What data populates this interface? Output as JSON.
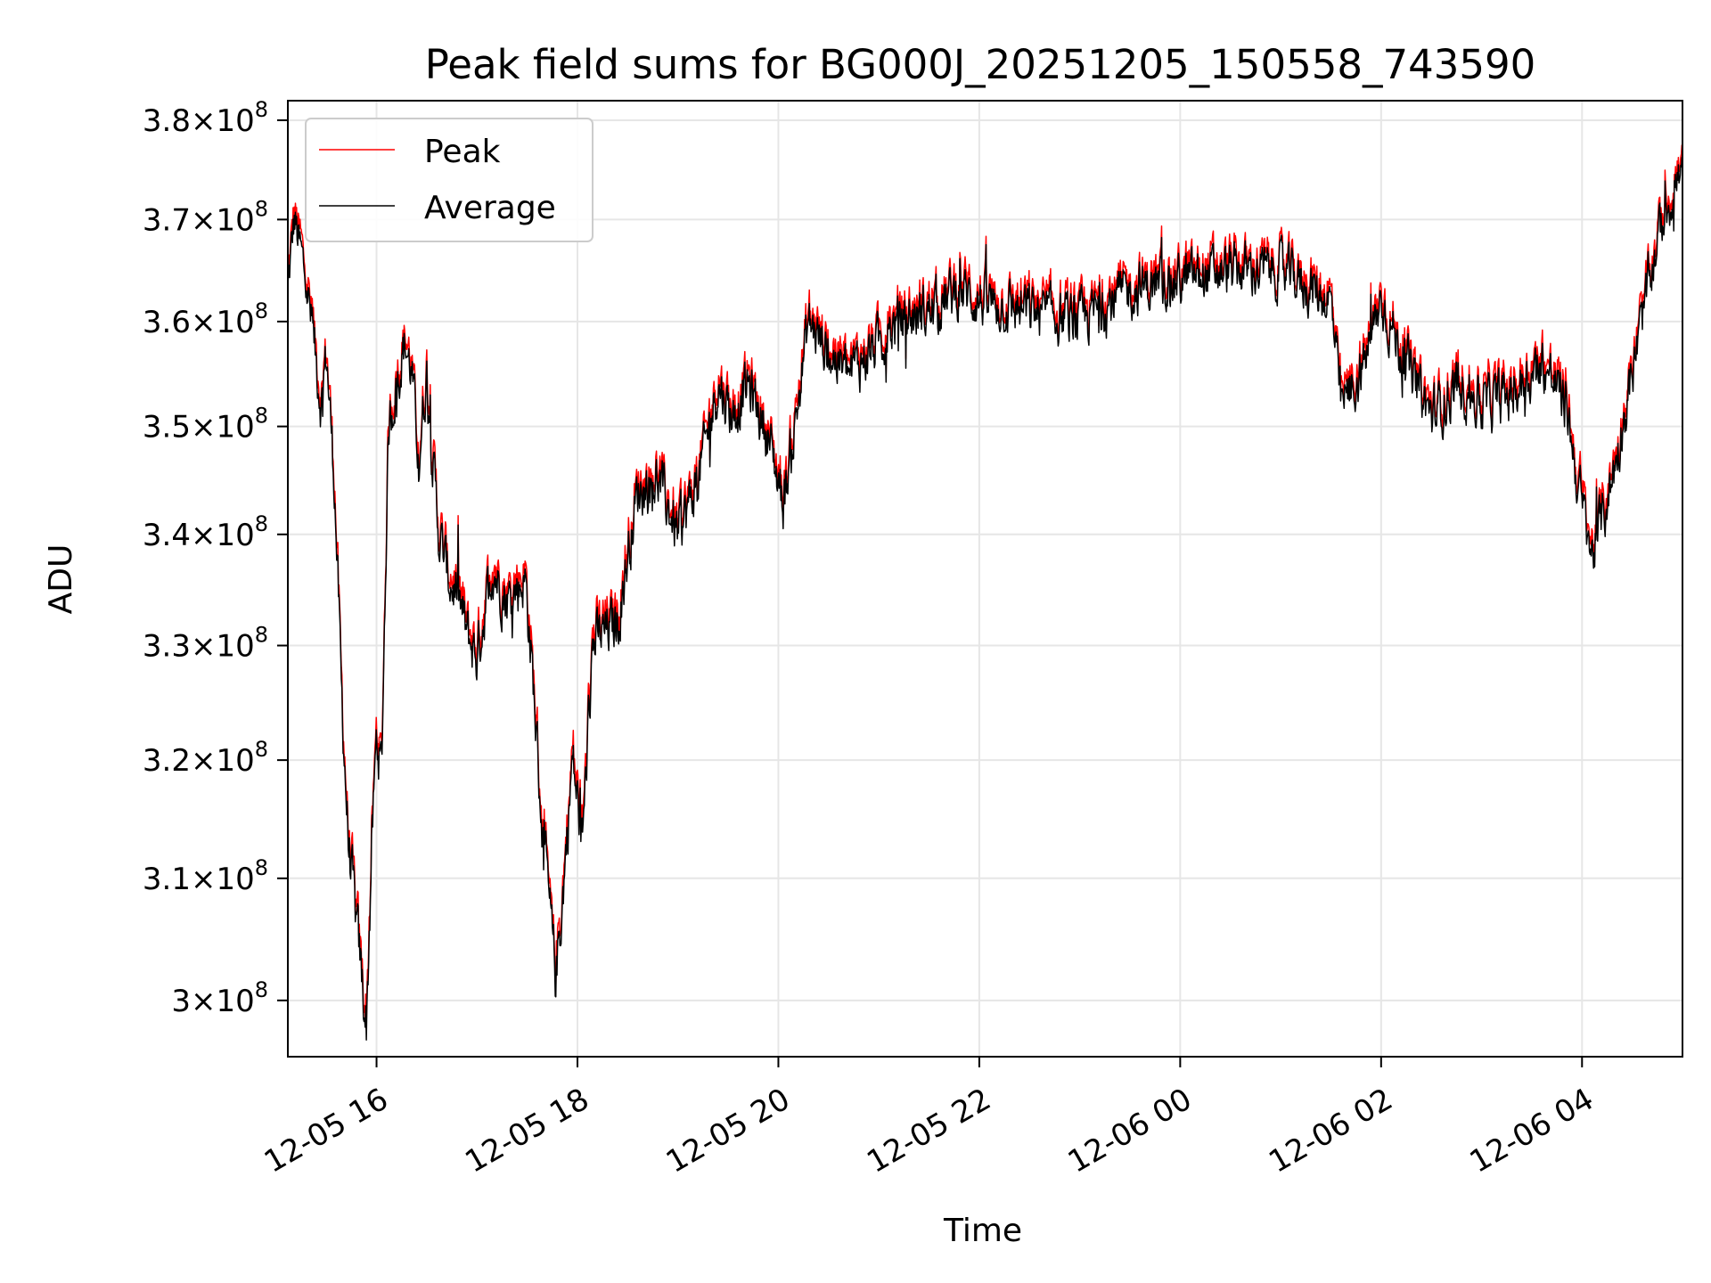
{
  "chart_data": {
    "type": "line",
    "title": "Peak field sums for BG000J_20251205_150558_743590",
    "xlabel": "Time",
    "ylabel": "ADU",
    "xlim_hours": [
      -0.883,
      13.0
    ],
    "ylim": [
      295500000,
      382000000
    ],
    "x_ticks": [
      {
        "hours": 0,
        "label": "12-05 16"
      },
      {
        "hours": 2,
        "label": "12-05 18"
      },
      {
        "hours": 4,
        "label": "12-05 20"
      },
      {
        "hours": 6,
        "label": "12-05 22"
      },
      {
        "hours": 8,
        "label": "12-06 00"
      },
      {
        "hours": 10,
        "label": "12-06 02"
      },
      {
        "hours": 12,
        "label": "12-06 04"
      }
    ],
    "y_ticks": [
      {
        "value": 300000000,
        "mantissa": "3",
        "base": "10",
        "exp": "8"
      },
      {
        "value": 310000000,
        "mantissa": "3.1",
        "base": "10",
        "exp": "8"
      },
      {
        "value": 320000000,
        "mantissa": "3.2",
        "base": "10",
        "exp": "8"
      },
      {
        "value": 330000000,
        "mantissa": "3.3",
        "base": "10",
        "exp": "8"
      },
      {
        "value": 340000000,
        "mantissa": "3.4",
        "base": "10",
        "exp": "8"
      },
      {
        "value": 350000000,
        "mantissa": "3.5",
        "base": "10",
        "exp": "8"
      },
      {
        "value": 360000000,
        "mantissa": "3.6",
        "base": "10",
        "exp": "8"
      },
      {
        "value": 370000000,
        "mantissa": "3.7",
        "base": "10",
        "exp": "8"
      },
      {
        "value": 380000000,
        "mantissa": "3.8",
        "base": "10",
        "exp": "8"
      }
    ],
    "grid": true,
    "legend_position": "top-left",
    "noise_amplitude": 2500000,
    "series": [
      {
        "name": "Peak",
        "color": "#ff0000",
        "offset": 600000
      },
      {
        "name": "Average",
        "color": "#000000",
        "offset": 0
      }
    ],
    "trend": {
      "x_hours": [
        -0.883,
        -0.82,
        -0.7,
        -0.55,
        -0.5,
        -0.42,
        -0.35,
        -0.28,
        -0.2,
        -0.1,
        -0.05,
        0.0,
        0.05,
        0.12,
        0.2,
        0.28,
        0.35,
        0.42,
        0.5,
        0.55,
        0.62,
        0.72,
        0.82,
        0.9,
        1.0,
        1.15,
        1.3,
        1.48,
        1.55,
        1.65,
        1.78,
        1.85,
        1.95,
        2.05,
        2.15,
        2.25,
        2.4,
        2.6,
        2.8,
        3.0,
        3.2,
        3.4,
        3.5,
        3.55,
        3.7,
        3.9,
        4.05,
        4.15,
        4.3,
        4.5,
        4.7,
        4.9,
        5.2,
        5.5,
        5.8,
        6.0,
        6.5,
        7.0,
        7.5,
        8.0,
        8.5,
        9.0,
        9.5,
        9.6,
        9.8,
        10.0,
        10.2,
        10.5,
        10.8,
        11.0,
        11.3,
        11.6,
        11.85,
        11.95,
        12.1,
        12.3,
        12.5,
        12.65,
        12.8,
        13.0
      ],
      "y": [
        363000000,
        370000000,
        364000000,
        352000000,
        357000000,
        345000000,
        326000000,
        313000000,
        306000000,
        298000000,
        312000000,
        322000000,
        319000000,
        350000000,
        354000000,
        358000000,
        355000000,
        347000000,
        355000000,
        348000000,
        340000000,
        336000000,
        334000000,
        331000000,
        329000000,
        337000000,
        334000000,
        336000000,
        328000000,
        314000000,
        302000000,
        308000000,
        320000000,
        313000000,
        330000000,
        331000000,
        332000000,
        344000000,
        345000000,
        340000000,
        345000000,
        354000000,
        352000000,
        351000000,
        354000000,
        349000000,
        343000000,
        349000000,
        360000000,
        357000000,
        355000000,
        357000000,
        360000000,
        361000000,
        363000000,
        362000000,
        361000000,
        360000000,
        363000000,
        364000000,
        365000000,
        365000000,
        362000000,
        352000000,
        355000000,
        362000000,
        357000000,
        351000000,
        354000000,
        352000000,
        353000000,
        356000000,
        352000000,
        345000000,
        338000000,
        345000000,
        355000000,
        363000000,
        370000000,
        375000000
      ]
    }
  },
  "legend": {
    "peak_label": "Peak",
    "average_label": "Average"
  }
}
